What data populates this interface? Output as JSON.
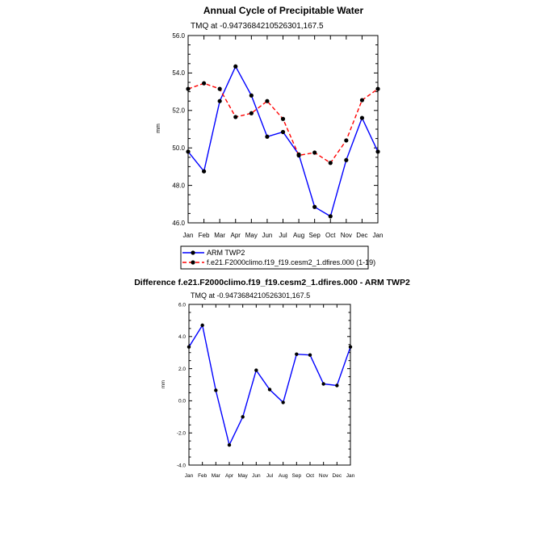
{
  "chart_data": [
    {
      "type": "line",
      "title": "Annual Cycle of Precipitable Water",
      "subtitle": "TMQ at -0.9473684210526301,167.5",
      "xlabel": "",
      "ylabel": "mm",
      "categories": [
        "Jan",
        "Feb",
        "Mar",
        "Apr",
        "May",
        "Jun",
        "Jul",
        "Aug",
        "Sep",
        "Oct",
        "Nov",
        "Dec",
        "Jan"
      ],
      "ylim": [
        46.0,
        56.0
      ],
      "yticks": [
        "46.0",
        "48.0",
        "50.0",
        "52.0",
        "54.0",
        "56.0"
      ],
      "series": [
        {
          "name": "ARM TWP2",
          "color": "#0000ff",
          "style": "solid",
          "values": [
            49.8,
            48.75,
            52.5,
            54.35,
            52.8,
            50.6,
            50.85,
            49.65,
            46.85,
            46.35,
            49.35,
            51.6,
            49.8
          ]
        },
        {
          "name": "f.e21.F2000climo.f19_f19.cesm2_1.dfires.000 (1-19)",
          "color": "#ff0000",
          "style": "dashed",
          "values": [
            53.15,
            53.45,
            53.15,
            51.65,
            51.85,
            52.5,
            51.55,
            49.6,
            49.75,
            49.2,
            50.4,
            52.55,
            53.15
          ]
        }
      ]
    },
    {
      "type": "line",
      "title": "Difference f.e21.F2000climo.f19_f19.cesm2_1.dfires.000 - ARM TWP2",
      "subtitle": "TMQ at -0.9473684210526301,167.5",
      "xlabel": "",
      "ylabel": "mm",
      "categories": [
        "Jan",
        "Feb",
        "Mar",
        "Apr",
        "May",
        "Jun",
        "Jul",
        "Aug",
        "Sep",
        "Oct",
        "Nov",
        "Dec",
        "Jan"
      ],
      "ylim": [
        -4.0,
        6.0
      ],
      "yticks": [
        "-4.0",
        "-2.0",
        "0.0",
        "2.0",
        "4.0",
        "6.0"
      ],
      "series": [
        {
          "name": "Difference",
          "color": "#0000ff",
          "style": "solid",
          "values": [
            3.35,
            4.7,
            0.65,
            -2.75,
            -1.0,
            1.9,
            0.7,
            -0.1,
            2.9,
            2.85,
            1.05,
            0.95,
            3.35
          ]
        }
      ]
    }
  ]
}
